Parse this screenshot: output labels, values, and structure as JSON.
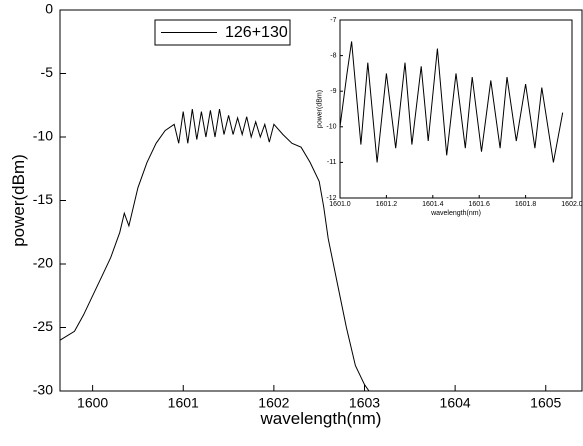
{
  "chart_data": [
    {
      "type": "line",
      "xlabel": "wavelength(nm)",
      "ylabel": "power(dBm)",
      "x": [
        1599.64,
        1599.8,
        1599.9,
        1600.0,
        1600.1,
        1600.2,
        1600.3,
        1600.35,
        1600.4,
        1600.5,
        1600.6,
        1600.7,
        1600.8,
        1600.9,
        1600.95,
        1601.0,
        1601.05,
        1601.1,
        1601.15,
        1601.2,
        1601.25,
        1601.3,
        1601.35,
        1601.4,
        1601.45,
        1601.5,
        1601.55,
        1601.6,
        1601.65,
        1601.7,
        1601.75,
        1601.8,
        1601.85,
        1601.9,
        1601.95,
        1602.0,
        1602.1,
        1602.2,
        1602.3,
        1602.4,
        1602.5,
        1602.55,
        1602.6,
        1602.7,
        1602.8,
        1602.9,
        1603.0,
        1603.05
      ],
      "series": [
        {
          "name": "126+130",
          "color": "#000000",
          "values": [
            -26,
            -25.3,
            -24,
            -22.5,
            -21,
            -19.5,
            -17.5,
            -16,
            -17,
            -14,
            -12,
            -10.5,
            -9.5,
            -9,
            -10.5,
            -8,
            -10.5,
            -7.8,
            -10.2,
            -8,
            -10,
            -7.9,
            -10,
            -7.8,
            -9.8,
            -8.3,
            -9.8,
            -8.5,
            -9.8,
            -8.4,
            -10,
            -8.8,
            -10,
            -9,
            -10.4,
            -9,
            -9.8,
            -10.5,
            -10.8,
            -12,
            -13.5,
            -15.5,
            -18,
            -21.5,
            -25,
            -28,
            -29.5,
            -30
          ]
        }
      ],
      "xlim": [
        1599.64,
        1605.4
      ],
      "ylim": [
        -30,
        0
      ],
      "xticks": [
        1600,
        1601,
        1602,
        1603,
        1604,
        1605
      ],
      "yticks": [
        0,
        -5,
        -10,
        -15,
        -20,
        -25,
        -30
      ],
      "legend": "top-left"
    },
    {
      "type": "line",
      "xlabel": "wavelength(nm)",
      "ylabel": "power(dBm)",
      "x": [
        1601.0,
        1601.03,
        1601.05,
        1601.09,
        1601.12,
        1601.16,
        1601.2,
        1601.24,
        1601.28,
        1601.31,
        1601.35,
        1601.38,
        1601.42,
        1601.46,
        1601.5,
        1601.54,
        1601.57,
        1601.61,
        1601.65,
        1601.69,
        1601.72,
        1601.76,
        1601.8,
        1601.84,
        1601.87,
        1601.92,
        1601.96
      ],
      "series": [
        {
          "color": "#000000",
          "values": [
            -10,
            -8.5,
            -7.6,
            -10.5,
            -8.2,
            -11,
            -8.5,
            -10.6,
            -8.2,
            -10.5,
            -8.3,
            -10.4,
            -7.8,
            -10.8,
            -8.5,
            -10.6,
            -8.6,
            -10.7,
            -8.7,
            -10.6,
            -8.6,
            -10.4,
            -8.8,
            -10.6,
            -8.9,
            -11,
            -9.6
          ]
        }
      ],
      "xlim": [
        1601.0,
        1602.0
      ],
      "ylim": [
        -12,
        -7
      ],
      "xticks": [
        {
          "value": 1601.0,
          "label": "1601.0"
        },
        1601.2,
        1601.4,
        1601.6,
        1601.8,
        {
          "value": 1602.0,
          "label": "1602.0"
        }
      ],
      "yticks": [
        -7,
        -8,
        -9,
        -10,
        -11,
        -12
      ]
    }
  ]
}
